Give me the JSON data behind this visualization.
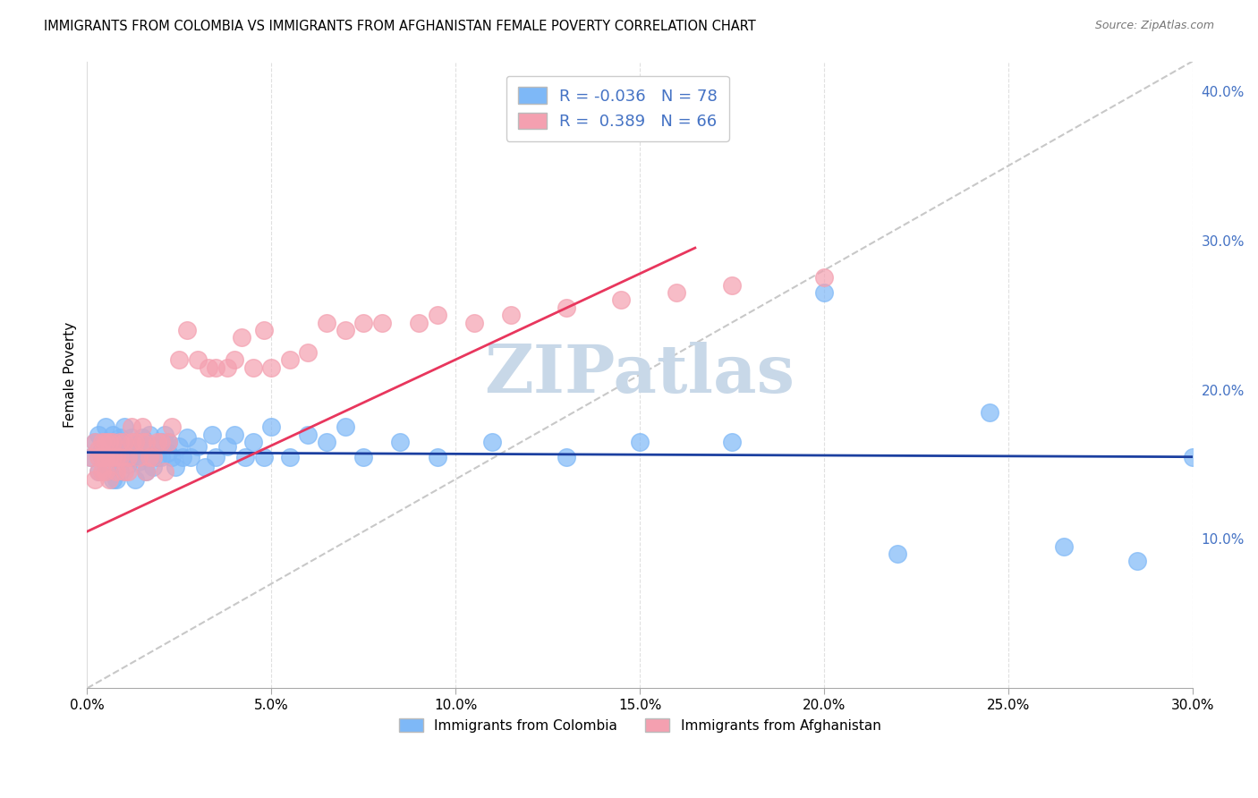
{
  "title": "IMMIGRANTS FROM COLOMBIA VS IMMIGRANTS FROM AFGHANISTAN FEMALE POVERTY CORRELATION CHART",
  "source": "Source: ZipAtlas.com",
  "xlabel_colombia": "Immigrants from Colombia",
  "xlabel_afghanistan": "Immigrants from Afghanistan",
  "ylabel": "Female Poverty",
  "xlim": [
    0.0,
    0.3
  ],
  "ylim": [
    0.0,
    0.42
  ],
  "xticks": [
    0.0,
    0.05,
    0.1,
    0.15,
    0.2,
    0.25,
    0.3
  ],
  "yticks_right": [
    0.1,
    0.2,
    0.3,
    0.4
  ],
  "R_colombia": -0.036,
  "N_colombia": 78,
  "R_afghanistan": 0.389,
  "N_afghanistan": 66,
  "color_colombia": "#7EB8F7",
  "color_afghanistan": "#F4A0B0",
  "trendline_colombia_color": "#1B3FA0",
  "trendline_afghanistan_color": "#E8365D",
  "diagonal_color": "#C8C8C8",
  "watermark": "ZIPatlas",
  "watermark_color": "#C8D8E8",
  "colombia_x": [
    0.001,
    0.002,
    0.003,
    0.003,
    0.004,
    0.004,
    0.005,
    0.005,
    0.006,
    0.006,
    0.006,
    0.007,
    0.007,
    0.007,
    0.008,
    0.008,
    0.008,
    0.009,
    0.009,
    0.009,
    0.01,
    0.01,
    0.01,
    0.011,
    0.011,
    0.012,
    0.012,
    0.013,
    0.013,
    0.014,
    0.014,
    0.015,
    0.015,
    0.016,
    0.016,
    0.017,
    0.017,
    0.018,
    0.018,
    0.019,
    0.02,
    0.02,
    0.021,
    0.022,
    0.022,
    0.023,
    0.024,
    0.025,
    0.026,
    0.027,
    0.028,
    0.03,
    0.032,
    0.034,
    0.035,
    0.038,
    0.04,
    0.043,
    0.045,
    0.048,
    0.05,
    0.055,
    0.06,
    0.065,
    0.07,
    0.075,
    0.085,
    0.095,
    0.11,
    0.13,
    0.15,
    0.175,
    0.2,
    0.22,
    0.245,
    0.265,
    0.285,
    0.3
  ],
  "colombia_y": [
    0.155,
    0.165,
    0.145,
    0.17,
    0.155,
    0.16,
    0.16,
    0.175,
    0.145,
    0.155,
    0.165,
    0.14,
    0.155,
    0.17,
    0.14,
    0.155,
    0.165,
    0.145,
    0.155,
    0.168,
    0.155,
    0.165,
    0.175,
    0.15,
    0.162,
    0.155,
    0.168,
    0.14,
    0.16,
    0.152,
    0.165,
    0.155,
    0.168,
    0.145,
    0.162,
    0.155,
    0.17,
    0.148,
    0.162,
    0.155,
    0.165,
    0.155,
    0.17,
    0.158,
    0.165,
    0.155,
    0.148,
    0.162,
    0.155,
    0.168,
    0.155,
    0.162,
    0.148,
    0.17,
    0.155,
    0.162,
    0.17,
    0.155,
    0.165,
    0.155,
    0.175,
    0.155,
    0.17,
    0.165,
    0.175,
    0.155,
    0.165,
    0.155,
    0.165,
    0.155,
    0.165,
    0.165,
    0.265,
    0.09,
    0.185,
    0.095,
    0.085,
    0.155
  ],
  "afghanistan_x": [
    0.001,
    0.002,
    0.002,
    0.003,
    0.003,
    0.003,
    0.004,
    0.004,
    0.004,
    0.005,
    0.005,
    0.005,
    0.006,
    0.006,
    0.006,
    0.007,
    0.007,
    0.008,
    0.008,
    0.009,
    0.009,
    0.01,
    0.01,
    0.011,
    0.011,
    0.012,
    0.012,
    0.013,
    0.014,
    0.015,
    0.015,
    0.016,
    0.016,
    0.017,
    0.018,
    0.019,
    0.02,
    0.021,
    0.022,
    0.023,
    0.025,
    0.027,
    0.03,
    0.033,
    0.035,
    0.038,
    0.04,
    0.042,
    0.045,
    0.048,
    0.05,
    0.055,
    0.06,
    0.065,
    0.07,
    0.075,
    0.08,
    0.09,
    0.095,
    0.105,
    0.115,
    0.13,
    0.145,
    0.16,
    0.175,
    0.2
  ],
  "afghanistan_y": [
    0.155,
    0.165,
    0.14,
    0.155,
    0.16,
    0.145,
    0.145,
    0.155,
    0.165,
    0.155,
    0.145,
    0.165,
    0.155,
    0.165,
    0.14,
    0.155,
    0.165,
    0.155,
    0.145,
    0.155,
    0.165,
    0.145,
    0.165,
    0.155,
    0.145,
    0.165,
    0.175,
    0.165,
    0.155,
    0.165,
    0.175,
    0.145,
    0.165,
    0.155,
    0.155,
    0.165,
    0.165,
    0.145,
    0.165,
    0.175,
    0.22,
    0.24,
    0.22,
    0.215,
    0.215,
    0.215,
    0.22,
    0.235,
    0.215,
    0.24,
    0.215,
    0.22,
    0.225,
    0.245,
    0.24,
    0.245,
    0.245,
    0.245,
    0.25,
    0.245,
    0.25,
    0.255,
    0.26,
    0.265,
    0.27,
    0.275
  ],
  "background_color": "#FFFFFF",
  "grid_color": "#E0E0E0",
  "afg_trendline_x": [
    0.0,
    0.165
  ],
  "afg_trendline_y": [
    0.105,
    0.295
  ],
  "col_trendline_x": [
    0.0,
    0.3
  ],
  "col_trendline_y": [
    0.158,
    0.155
  ]
}
